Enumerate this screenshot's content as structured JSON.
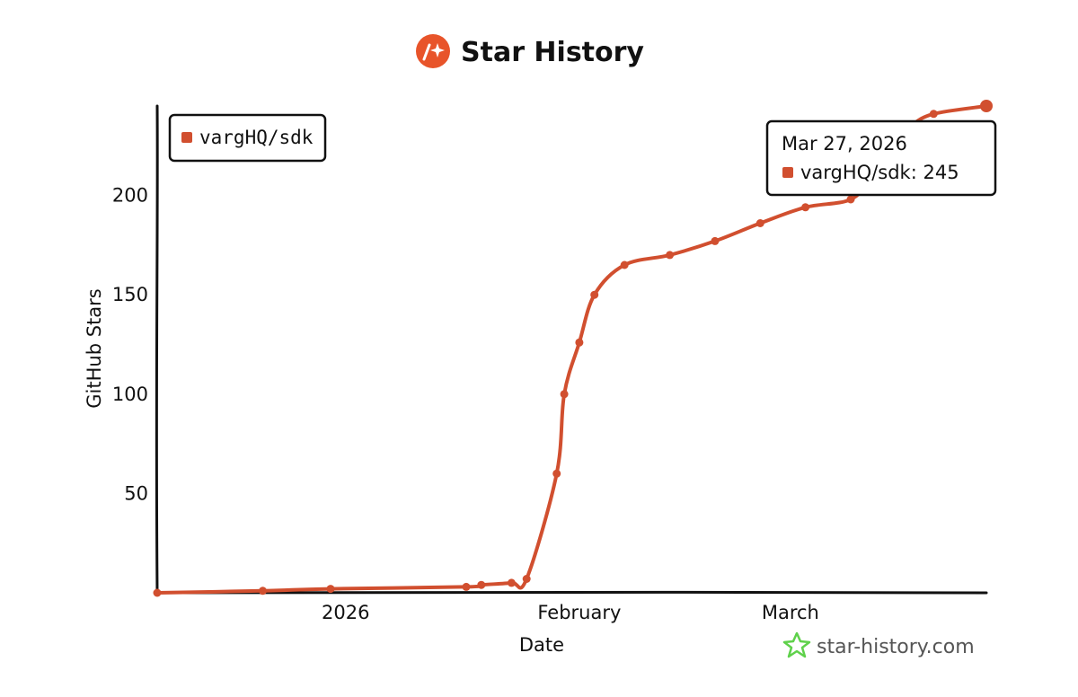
{
  "header": {
    "title": "Star History",
    "logo_icon": "star-history-logo-icon",
    "logo_color": "#e8542a"
  },
  "watermark": {
    "text": "star-history.com",
    "icon": "star-outline-icon",
    "icon_color": "#5fd14b"
  },
  "tooltip": {
    "date": "Mar 27, 2026",
    "label": "vargHQ/sdk: 245"
  },
  "chart_data": {
    "type": "line",
    "title": "Star History",
    "xlabel": "Date",
    "ylabel": "GitHub Stars",
    "x_type": "date",
    "xlim": [
      "2025-12-07",
      "2026-03-27"
    ],
    "ylim": [
      0,
      245
    ],
    "y_ticks": [
      50,
      100,
      150,
      200
    ],
    "x_ticks": [
      {
        "label": "2026",
        "date": "2026-01-01"
      },
      {
        "label": "February",
        "date": "2026-02-01"
      },
      {
        "label": "March",
        "date": "2026-03-01"
      }
    ],
    "grid": false,
    "legend_position": "top-left",
    "line_color": "#d14f2f",
    "series": [
      {
        "name": "vargHQ/sdk",
        "points": [
          [
            "2025-12-07",
            0
          ],
          [
            "2025-12-21",
            1
          ],
          [
            "2025-12-30",
            2
          ],
          [
            "2026-01-17",
            3
          ],
          [
            "2026-01-19",
            4
          ],
          [
            "2026-01-23",
            5
          ],
          [
            "2026-01-25",
            7
          ],
          [
            "2026-01-29",
            60
          ],
          [
            "2026-01-30",
            100
          ],
          [
            "2026-02-01",
            126
          ],
          [
            "2026-02-03",
            150
          ],
          [
            "2026-02-07",
            165
          ],
          [
            "2026-02-13",
            170
          ],
          [
            "2026-02-19",
            177
          ],
          [
            "2026-02-25",
            186
          ],
          [
            "2026-03-03",
            194
          ],
          [
            "2026-03-09",
            198
          ],
          [
            "2026-03-12",
            210
          ],
          [
            "2026-03-15",
            227
          ],
          [
            "2026-03-17",
            235
          ],
          [
            "2026-03-20",
            241
          ],
          [
            "2026-03-27",
            245
          ]
        ]
      }
    ]
  }
}
